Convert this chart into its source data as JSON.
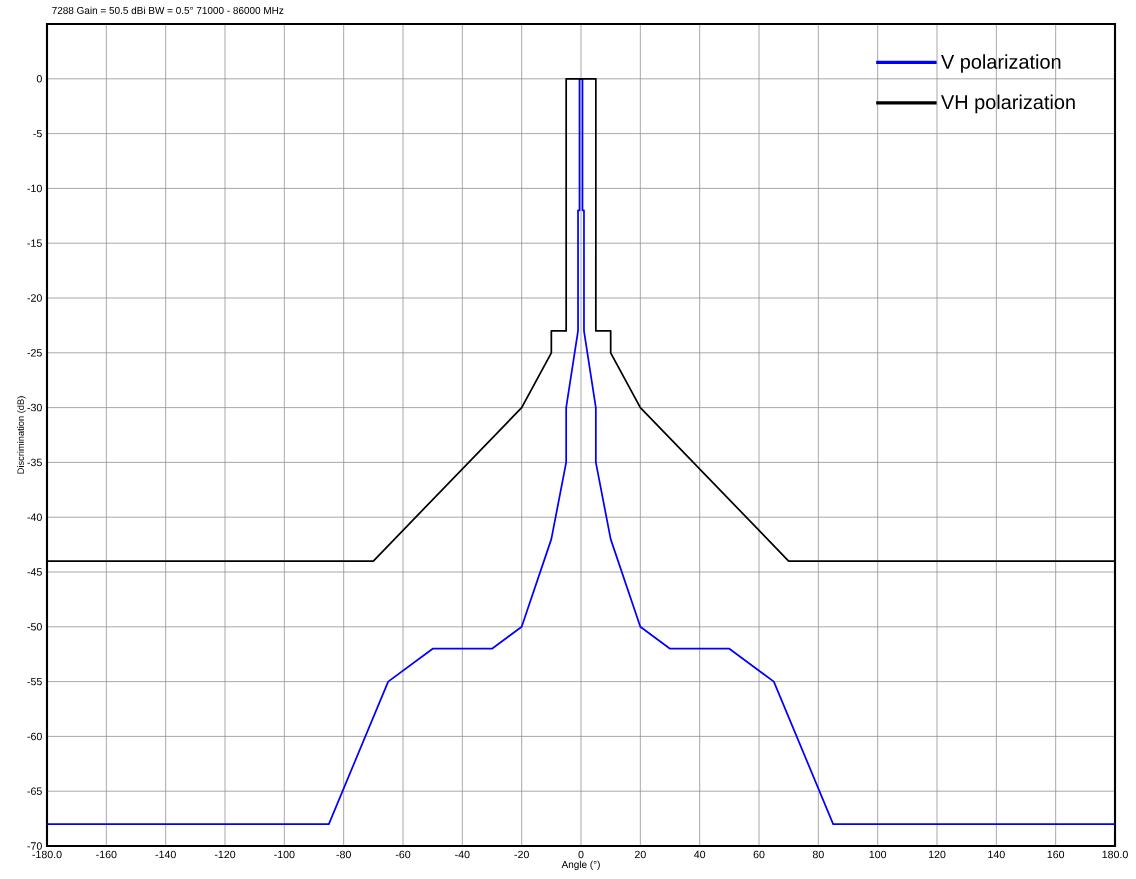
{
  "chart_data": {
    "type": "line",
    "title": "7288   Gain = 50.5 dBi   BW = 0.5°   71000 - 86000 MHz",
    "xlabel": "Angle (°)",
    "ylabel": "Discrimination (dB)",
    "xlim": [
      -180,
      180
    ],
    "ylim": [
      -70,
      5
    ],
    "xticks": [
      {
        "value": -180,
        "label": "-180.0"
      },
      -160,
      -140,
      -120,
      -100,
      -80,
      -60,
      -40,
      -20,
      0,
      20,
      40,
      60,
      80,
      100,
      120,
      140,
      160,
      {
        "value": 180,
        "label": "180.0"
      }
    ],
    "yticks": [
      0,
      -5,
      -10,
      -15,
      -20,
      -25,
      -30,
      -35,
      -40,
      -45,
      -50,
      -55,
      -60,
      -65,
      -70
    ],
    "grid": true,
    "legend": "top right",
    "series": [
      {
        "name": "V polarization",
        "color": "#0000ff",
        "x": [
          -180,
          -85,
          -65,
          -50,
          -30,
          -20,
          -10,
          -5,
          -5,
          -1,
          -1,
          -0.5,
          -0.5,
          0.5,
          0.5,
          1,
          1,
          5,
          5,
          10,
          20,
          30,
          50,
          65,
          85,
          180
        ],
        "values": [
          -68,
          -68,
          -55,
          -52,
          -52,
          -50,
          -42,
          -35,
          -30,
          -23,
          -12,
          -12,
          0,
          0,
          -12,
          -12,
          -23,
          -30,
          -35,
          -42,
          -50,
          -52,
          -52,
          -55,
          -68,
          -68
        ]
      },
      {
        "name": "VH polarization",
        "color": "#000000",
        "x": [
          -180,
          -70,
          -20,
          -10,
          -10,
          -5,
          -5,
          5,
          5,
          10,
          10,
          20,
          70,
          180
        ],
        "values": [
          -44,
          -44,
          -30,
          -25,
          -23,
          -23,
          0,
          0,
          -23,
          -23,
          -25,
          -30,
          -44,
          -44
        ]
      }
    ]
  }
}
